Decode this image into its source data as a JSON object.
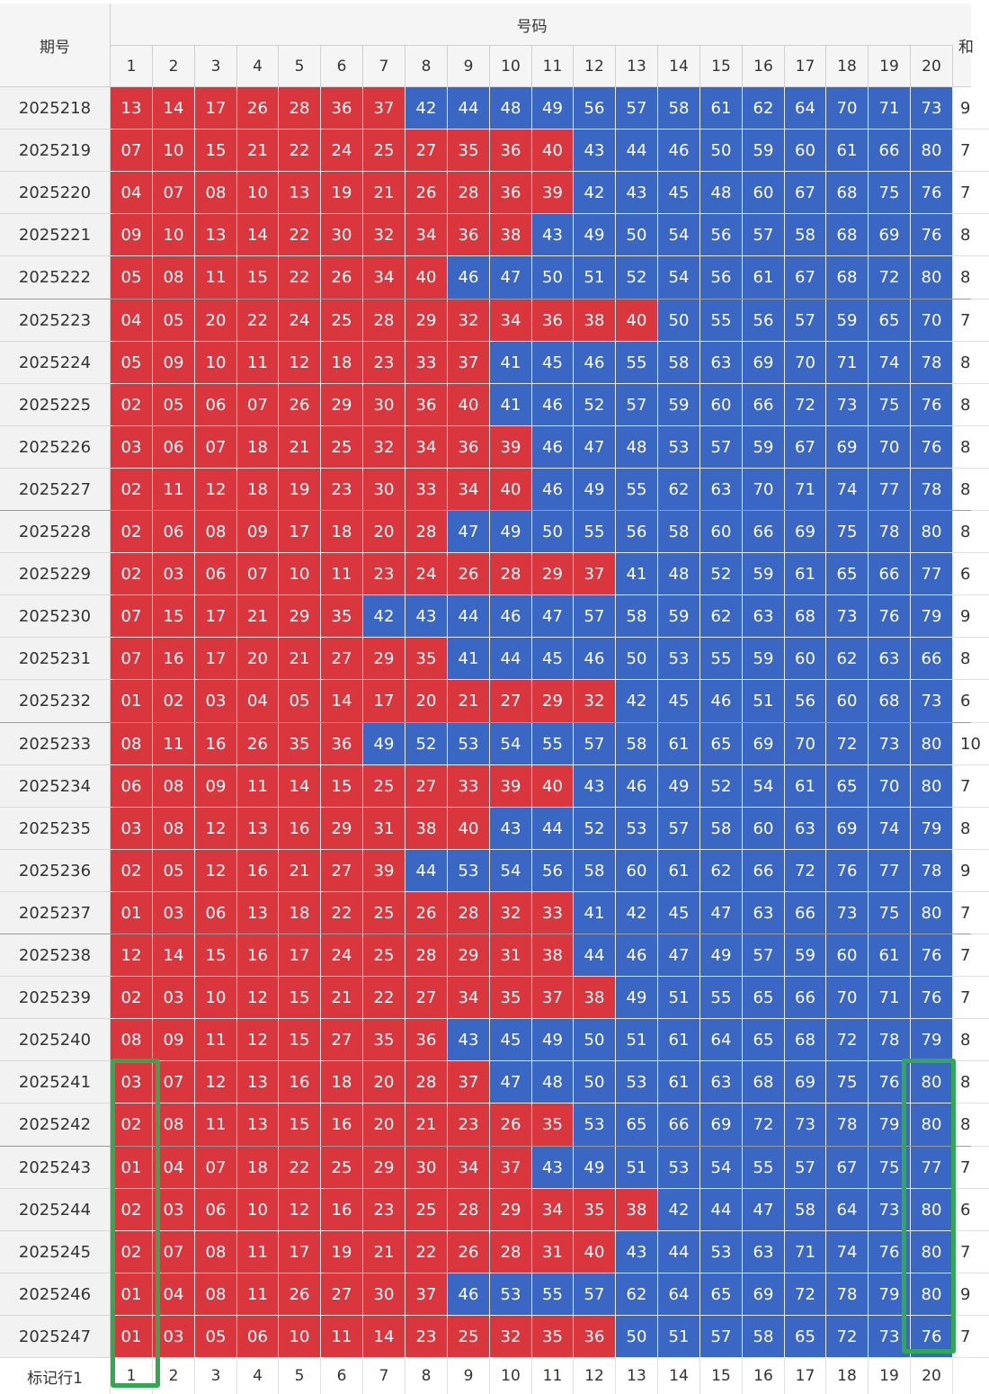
{
  "header": {
    "period_label": "期号",
    "numbers_label": "号码",
    "sum_label": "和",
    "columns": [
      "1",
      "2",
      "3",
      "4",
      "5",
      "6",
      "7",
      "8",
      "9",
      "10",
      "11",
      "12",
      "13",
      "14",
      "15",
      "16",
      "17",
      "18",
      "19",
      "20"
    ]
  },
  "colors": {
    "red": "#d9363e",
    "blue": "#3a66c4",
    "highlight_box": "#33a852"
  },
  "rows": [
    {
      "period": "2025218",
      "nums": [
        "13",
        "14",
        "17",
        "26",
        "28",
        "36",
        "37",
        "42",
        "44",
        "48",
        "49",
        "56",
        "57",
        "58",
        "61",
        "62",
        "64",
        "70",
        "71",
        "73"
      ],
      "sum": "9"
    },
    {
      "period": "2025219",
      "nums": [
        "07",
        "10",
        "15",
        "21",
        "22",
        "24",
        "25",
        "27",
        "35",
        "36",
        "40",
        "43",
        "44",
        "46",
        "50",
        "59",
        "60",
        "61",
        "66",
        "80"
      ],
      "sum": "7"
    },
    {
      "period": "2025220",
      "nums": [
        "04",
        "07",
        "08",
        "10",
        "13",
        "19",
        "21",
        "26",
        "28",
        "36",
        "39",
        "42",
        "43",
        "45",
        "48",
        "60",
        "67",
        "68",
        "75",
        "76"
      ],
      "sum": "7"
    },
    {
      "period": "2025221",
      "nums": [
        "09",
        "10",
        "13",
        "14",
        "22",
        "30",
        "32",
        "34",
        "36",
        "38",
        "43",
        "49",
        "50",
        "54",
        "56",
        "57",
        "58",
        "68",
        "69",
        "76"
      ],
      "sum": "8"
    },
    {
      "period": "2025222",
      "nums": [
        "05",
        "08",
        "11",
        "15",
        "22",
        "26",
        "34",
        "40",
        "46",
        "47",
        "50",
        "51",
        "52",
        "54",
        "56",
        "61",
        "67",
        "68",
        "72",
        "80"
      ],
      "sum": "8"
    },
    {
      "period": "2025223",
      "nums": [
        "04",
        "05",
        "20",
        "22",
        "24",
        "25",
        "28",
        "29",
        "32",
        "34",
        "36",
        "38",
        "40",
        "50",
        "55",
        "56",
        "57",
        "59",
        "65",
        "70"
      ],
      "sum": "7"
    },
    {
      "period": "2025224",
      "nums": [
        "05",
        "09",
        "10",
        "11",
        "12",
        "18",
        "23",
        "33",
        "37",
        "41",
        "45",
        "46",
        "55",
        "58",
        "63",
        "69",
        "70",
        "71",
        "74",
        "78"
      ],
      "sum": "8"
    },
    {
      "period": "2025225",
      "nums": [
        "02",
        "05",
        "06",
        "07",
        "26",
        "29",
        "30",
        "36",
        "40",
        "41",
        "46",
        "52",
        "57",
        "59",
        "60",
        "66",
        "72",
        "73",
        "75",
        "76"
      ],
      "sum": "8"
    },
    {
      "period": "2025226",
      "nums": [
        "03",
        "06",
        "07",
        "18",
        "21",
        "25",
        "32",
        "34",
        "36",
        "39",
        "46",
        "47",
        "48",
        "53",
        "57",
        "59",
        "67",
        "69",
        "70",
        "76"
      ],
      "sum": "8"
    },
    {
      "period": "2025227",
      "nums": [
        "02",
        "11",
        "12",
        "18",
        "19",
        "23",
        "30",
        "33",
        "34",
        "40",
        "46",
        "49",
        "55",
        "62",
        "63",
        "70",
        "71",
        "74",
        "77",
        "78"
      ],
      "sum": "8"
    },
    {
      "period": "2025228",
      "nums": [
        "02",
        "06",
        "08",
        "09",
        "17",
        "18",
        "20",
        "28",
        "47",
        "49",
        "50",
        "55",
        "56",
        "58",
        "60",
        "66",
        "69",
        "75",
        "78",
        "80"
      ],
      "sum": "8"
    },
    {
      "period": "2025229",
      "nums": [
        "02",
        "03",
        "06",
        "07",
        "10",
        "11",
        "23",
        "24",
        "26",
        "28",
        "29",
        "37",
        "41",
        "48",
        "52",
        "59",
        "61",
        "65",
        "66",
        "77"
      ],
      "sum": "6"
    },
    {
      "period": "2025230",
      "nums": [
        "07",
        "15",
        "17",
        "21",
        "29",
        "35",
        "42",
        "43",
        "44",
        "46",
        "47",
        "57",
        "58",
        "59",
        "62",
        "63",
        "68",
        "73",
        "76",
        "79"
      ],
      "sum": "9"
    },
    {
      "period": "2025231",
      "nums": [
        "07",
        "16",
        "17",
        "20",
        "21",
        "27",
        "29",
        "35",
        "41",
        "44",
        "45",
        "46",
        "50",
        "53",
        "55",
        "59",
        "60",
        "62",
        "63",
        "66"
      ],
      "sum": "8"
    },
    {
      "period": "2025232",
      "nums": [
        "01",
        "02",
        "03",
        "04",
        "05",
        "14",
        "17",
        "20",
        "21",
        "27",
        "29",
        "32",
        "42",
        "45",
        "46",
        "51",
        "56",
        "60",
        "68",
        "73"
      ],
      "sum": "6"
    },
    {
      "period": "2025233",
      "nums": [
        "08",
        "11",
        "16",
        "26",
        "35",
        "36",
        "49",
        "52",
        "53",
        "54",
        "55",
        "57",
        "58",
        "61",
        "65",
        "69",
        "70",
        "72",
        "73",
        "80"
      ],
      "sum": "10"
    },
    {
      "period": "2025234",
      "nums": [
        "06",
        "08",
        "09",
        "11",
        "14",
        "15",
        "25",
        "27",
        "33",
        "39",
        "40",
        "43",
        "46",
        "49",
        "52",
        "54",
        "61",
        "65",
        "70",
        "80"
      ],
      "sum": "7"
    },
    {
      "period": "2025235",
      "nums": [
        "03",
        "08",
        "12",
        "13",
        "16",
        "29",
        "31",
        "38",
        "40",
        "43",
        "44",
        "52",
        "53",
        "57",
        "58",
        "60",
        "63",
        "69",
        "74",
        "79"
      ],
      "sum": "8"
    },
    {
      "period": "2025236",
      "nums": [
        "02",
        "05",
        "12",
        "16",
        "21",
        "27",
        "39",
        "44",
        "53",
        "54",
        "56",
        "58",
        "60",
        "61",
        "62",
        "66",
        "72",
        "76",
        "77",
        "78"
      ],
      "sum": "9"
    },
    {
      "period": "2025237",
      "nums": [
        "01",
        "03",
        "06",
        "13",
        "18",
        "22",
        "25",
        "26",
        "28",
        "32",
        "33",
        "41",
        "42",
        "45",
        "47",
        "63",
        "66",
        "73",
        "75",
        "80"
      ],
      "sum": "7"
    },
    {
      "period": "2025238",
      "nums": [
        "12",
        "14",
        "15",
        "16",
        "17",
        "24",
        "25",
        "28",
        "29",
        "31",
        "38",
        "44",
        "46",
        "47",
        "49",
        "57",
        "59",
        "60",
        "61",
        "76"
      ],
      "sum": "7"
    },
    {
      "period": "2025239",
      "nums": [
        "02",
        "03",
        "10",
        "12",
        "15",
        "21",
        "22",
        "27",
        "34",
        "35",
        "37",
        "38",
        "49",
        "51",
        "55",
        "65",
        "66",
        "70",
        "71",
        "76"
      ],
      "sum": "7"
    },
    {
      "period": "2025240",
      "nums": [
        "08",
        "09",
        "11",
        "12",
        "15",
        "27",
        "35",
        "36",
        "43",
        "45",
        "49",
        "50",
        "51",
        "61",
        "64",
        "65",
        "68",
        "72",
        "78",
        "79"
      ],
      "sum": "8"
    },
    {
      "period": "2025241",
      "nums": [
        "03",
        "07",
        "12",
        "13",
        "16",
        "18",
        "20",
        "28",
        "37",
        "47",
        "48",
        "50",
        "53",
        "61",
        "63",
        "68",
        "69",
        "75",
        "76",
        "80"
      ],
      "sum": "8"
    },
    {
      "period": "2025242",
      "nums": [
        "02",
        "08",
        "11",
        "13",
        "15",
        "16",
        "20",
        "21",
        "23",
        "26",
        "35",
        "53",
        "65",
        "66",
        "69",
        "72",
        "73",
        "78",
        "79",
        "80"
      ],
      "sum": "8"
    },
    {
      "period": "2025243",
      "nums": [
        "01",
        "04",
        "07",
        "18",
        "22",
        "25",
        "29",
        "30",
        "34",
        "37",
        "43",
        "49",
        "51",
        "53",
        "54",
        "55",
        "57",
        "67",
        "75",
        "77"
      ],
      "sum": "7"
    },
    {
      "period": "2025244",
      "nums": [
        "02",
        "03",
        "06",
        "10",
        "12",
        "16",
        "23",
        "25",
        "28",
        "29",
        "34",
        "35",
        "38",
        "42",
        "44",
        "47",
        "58",
        "64",
        "73",
        "80"
      ],
      "sum": "6"
    },
    {
      "period": "2025245",
      "nums": [
        "02",
        "07",
        "08",
        "11",
        "17",
        "19",
        "21",
        "22",
        "26",
        "28",
        "31",
        "40",
        "43",
        "44",
        "53",
        "63",
        "71",
        "74",
        "76",
        "80"
      ],
      "sum": "7"
    },
    {
      "period": "2025246",
      "nums": [
        "01",
        "04",
        "08",
        "11",
        "26",
        "27",
        "30",
        "37",
        "46",
        "53",
        "55",
        "57",
        "62",
        "64",
        "65",
        "69",
        "72",
        "78",
        "79",
        "80"
      ],
      "sum": "9"
    },
    {
      "period": "2025247",
      "nums": [
        "01",
        "03",
        "05",
        "06",
        "10",
        "11",
        "14",
        "23",
        "25",
        "32",
        "35",
        "36",
        "50",
        "51",
        "57",
        "58",
        "65",
        "72",
        "73",
        "76"
      ],
      "sum": "7"
    }
  ],
  "footer": {
    "label": "标记行1",
    "columns": [
      "1",
      "2",
      "3",
      "4",
      "5",
      "6",
      "7",
      "8",
      "9",
      "10",
      "11",
      "12",
      "13",
      "14",
      "15",
      "16",
      "17",
      "18",
      "19",
      "20"
    ]
  }
}
